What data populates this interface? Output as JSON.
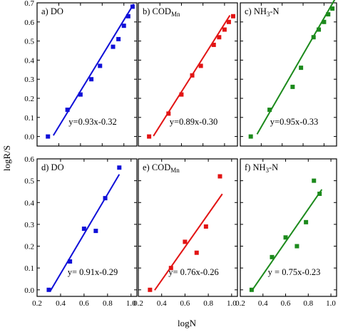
{
  "figure": {
    "xlabel": "logN",
    "ylabel": "logR/S"
  },
  "chart_data": [
    {
      "type": "scatter",
      "label_pre": "a) DO",
      "label_sub": "",
      "label_post": "",
      "equation": "y=0.93x-0.32",
      "color": "#1010d8",
      "row": 0,
      "col": 0,
      "xlim": [
        0.2,
        1.12
      ],
      "ylim": [
        -0.05,
        0.7
      ],
      "xticks": [
        "0.4",
        "0.6",
        "0.8",
        "1.0"
      ],
      "yticks": [
        "0.0",
        "0.1",
        "0.2",
        "0.3",
        "0.4",
        "0.5",
        "0.6",
        "0.7"
      ],
      "show_xticks": false,
      "show_yticks": true,
      "points": [
        [
          0.3,
          0.0
        ],
        [
          0.48,
          0.14
        ],
        [
          0.6,
          0.22
        ],
        [
          0.7,
          0.3
        ],
        [
          0.78,
          0.37
        ],
        [
          0.9,
          0.47
        ],
        [
          0.95,
          0.51
        ],
        [
          1.0,
          0.58
        ],
        [
          1.04,
          0.63
        ],
        [
          1.08,
          0.68
        ]
      ],
      "fit": {
        "slope": 0.93,
        "intercept": -0.32,
        "x": [
          0.35,
          1.09
        ]
      }
    },
    {
      "type": "scatter",
      "label_pre": "b) COD",
      "label_sub": "Mn",
      "label_post": "",
      "equation": "y=0.89x-0.30",
      "color": "#e21414",
      "row": 0,
      "col": 1,
      "xlim": [
        0.2,
        1.12
      ],
      "ylim": [
        -0.05,
        0.7
      ],
      "xticks": [
        "0.4",
        "0.6",
        "0.8",
        "1.0"
      ],
      "yticks": [
        "0.0",
        "0.1",
        "0.2",
        "0.3",
        "0.4",
        "0.5",
        "0.6",
        "0.7"
      ],
      "show_xticks": false,
      "show_yticks": false,
      "points": [
        [
          0.3,
          0.0
        ],
        [
          0.48,
          0.12
        ],
        [
          0.6,
          0.22
        ],
        [
          0.7,
          0.32
        ],
        [
          0.78,
          0.37
        ],
        [
          0.9,
          0.48
        ],
        [
          0.95,
          0.52
        ],
        [
          1.0,
          0.56
        ],
        [
          1.04,
          0.6
        ],
        [
          1.08,
          0.63
        ]
      ],
      "fit": {
        "slope": 0.89,
        "intercept": -0.3,
        "x": [
          0.34,
          1.05
        ]
      }
    },
    {
      "type": "scatter",
      "label_pre": "c) NH",
      "label_sub": "3",
      "label_post": "-N",
      "equation": "y=0.95x-0.33",
      "color": "#1c8a1c",
      "row": 0,
      "col": 2,
      "xlim": [
        0.2,
        1.12
      ],
      "ylim": [
        -0.05,
        0.7
      ],
      "xticks": [
        "0.4",
        "0.6",
        "0.8",
        "1.0"
      ],
      "yticks": [
        "0.0",
        "0.1",
        "0.2",
        "0.3",
        "0.4",
        "0.5",
        "0.6",
        "0.7"
      ],
      "show_xticks": false,
      "show_yticks": false,
      "points": [
        [
          0.3,
          0.0
        ],
        [
          0.48,
          0.14
        ],
        [
          0.7,
          0.26
        ],
        [
          0.78,
          0.36
        ],
        [
          0.9,
          0.52
        ],
        [
          0.95,
          0.56
        ],
        [
          1.0,
          0.6
        ],
        [
          1.04,
          0.64
        ],
        [
          1.08,
          0.67
        ]
      ],
      "fit": {
        "slope": 0.95,
        "intercept": -0.33,
        "x": [
          0.36,
          1.11
        ]
      }
    },
    {
      "type": "scatter",
      "label_pre": "d) DO",
      "label_sub": "",
      "label_post": "",
      "equation": "y= 0.91x-0.29",
      "color": "#1010d8",
      "row": 1,
      "col": 0,
      "xlim": [
        0.2,
        1.05
      ],
      "ylim": [
        -0.03,
        0.6
      ],
      "xticks": [
        "0.2",
        "0.4",
        "0.6",
        "0.8",
        "1.0"
      ],
      "yticks": [
        "0.0",
        "0.1",
        "0.2",
        "0.3",
        "0.4",
        "0.5",
        "0.6"
      ],
      "show_xticks": true,
      "show_yticks": true,
      "points": [
        [
          0.3,
          0.0
        ],
        [
          0.48,
          0.13
        ],
        [
          0.6,
          0.28
        ],
        [
          0.7,
          0.27
        ],
        [
          0.78,
          0.42
        ],
        [
          0.9,
          0.56
        ]
      ],
      "fit": {
        "slope": 0.91,
        "intercept": -0.29,
        "x": [
          0.31,
          0.9
        ]
      }
    },
    {
      "type": "scatter",
      "label_pre": "e) COD",
      "label_sub": "Mn",
      "label_post": "",
      "equation": "y= 0.76x-0.26",
      "color": "#e21414",
      "row": 1,
      "col": 1,
      "xlim": [
        0.2,
        1.05
      ],
      "ylim": [
        -0.03,
        0.6
      ],
      "xticks": [
        "0.2",
        "0.4",
        "0.6",
        "0.8",
        "1.0"
      ],
      "yticks": [
        "0.0",
        "0.1",
        "0.2",
        "0.3",
        "0.4",
        "0.5",
        "0.6"
      ],
      "show_xticks": true,
      "show_yticks": false,
      "points": [
        [
          0.3,
          0.0
        ],
        [
          0.48,
          0.1
        ],
        [
          0.6,
          0.22
        ],
        [
          0.7,
          0.17
        ],
        [
          0.78,
          0.29
        ],
        [
          0.9,
          0.52
        ]
      ],
      "fit": {
        "slope": 0.76,
        "intercept": -0.26,
        "x": [
          0.34,
          0.92
        ]
      }
    },
    {
      "type": "scatter",
      "label_pre": "f) NH",
      "label_sub": "3",
      "label_post": "-N",
      "equation": "y = 0.75x-0.23",
      "color": "#1c8a1c",
      "row": 1,
      "col": 2,
      "xlim": [
        0.2,
        1.05
      ],
      "ylim": [
        -0.03,
        0.6
      ],
      "xticks": [
        "0.2",
        "0.4",
        "0.6",
        "0.8",
        "1.0"
      ],
      "yticks": [
        "0.0",
        "0.1",
        "0.2",
        "0.3",
        "0.4",
        "0.5",
        "0.6"
      ],
      "show_xticks": true,
      "show_yticks": false,
      "points": [
        [
          0.3,
          0.0
        ],
        [
          0.48,
          0.15
        ],
        [
          0.6,
          0.24
        ],
        [
          0.7,
          0.2
        ],
        [
          0.78,
          0.31
        ],
        [
          0.85,
          0.5
        ],
        [
          0.9,
          0.44
        ]
      ],
      "fit": {
        "slope": 0.75,
        "intercept": -0.23,
        "x": [
          0.31,
          0.92
        ]
      }
    }
  ]
}
